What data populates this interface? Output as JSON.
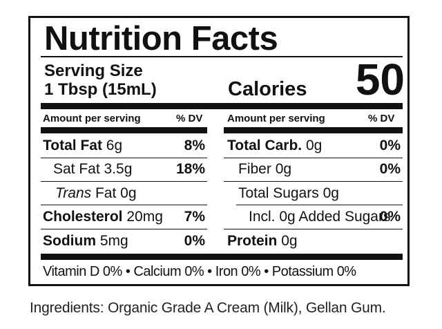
{
  "title": "Nutrition Facts",
  "serving": {
    "label": "Serving Size",
    "size": "1 Tbsp (15mL)"
  },
  "calories": {
    "label": "Calories",
    "value": "50"
  },
  "headers": {
    "amount_per_serving": "Amount per serving",
    "dv": "% DV"
  },
  "left": {
    "total_fat": {
      "name": "Total Fat",
      "amount": "6g",
      "dv": "8%"
    },
    "sat_fat": {
      "name": "Sat Fat",
      "amount": "3.5g",
      "dv": "18%"
    },
    "trans_fat": {
      "name_italic": "Trans",
      "name": "Fat",
      "amount": "0g"
    },
    "cholesterol": {
      "name": "Cholesterol",
      "amount": "20mg",
      "dv": "7%"
    },
    "sodium": {
      "name": "Sodium",
      "amount": "5mg",
      "dv": "0%"
    }
  },
  "right": {
    "total_carb": {
      "name": "Total Carb.",
      "amount": "0g",
      "dv": "0%"
    },
    "fiber": {
      "name": "Fiber",
      "amount": "0g",
      "dv": "0%"
    },
    "total_sugars": {
      "name": "Total Sugars",
      "amount": "0g"
    },
    "added_sugars": {
      "name": "Incl. 0g Added Sugars",
      "dv": "0%"
    },
    "protein": {
      "name": "Protein",
      "amount": "0g"
    }
  },
  "vitamins": "Vitamin D 0% • Calcium 0% • Iron 0% • Potassium 0%",
  "ingredients": "Ingredients: Organic Grade A Cream (Milk), Gellan Gum."
}
